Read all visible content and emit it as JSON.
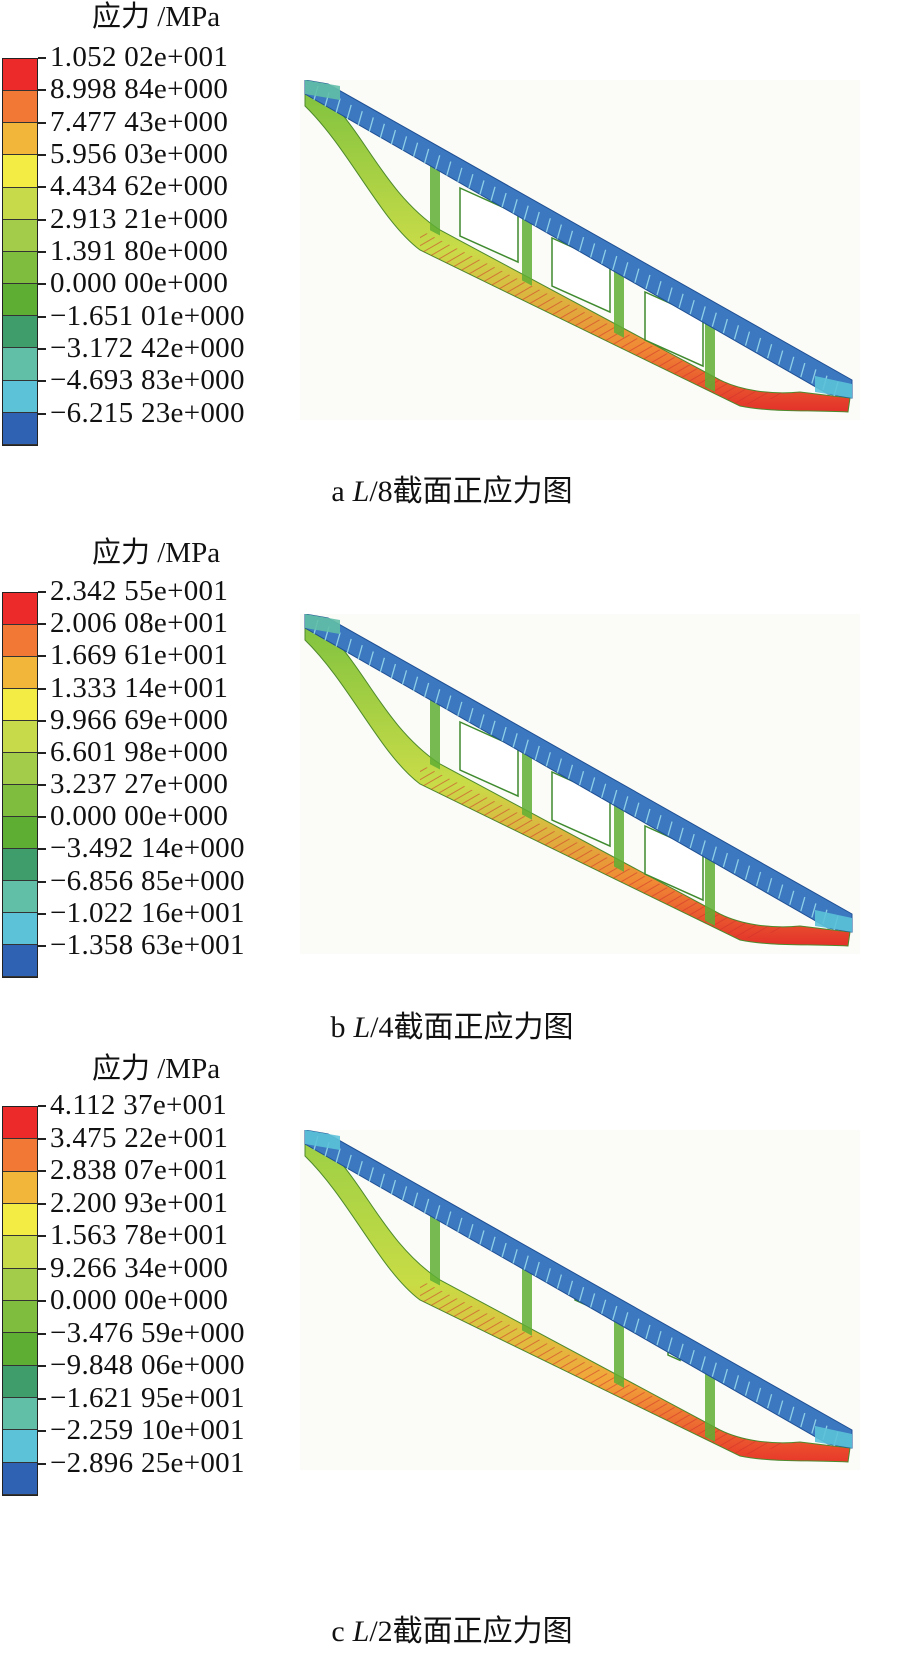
{
  "colors": [
    "#ec2a2a",
    "#f17935",
    "#f2b73a",
    "#f3ec45",
    "#c6da4a",
    "#a4cc4b",
    "#7ebd3d",
    "#5fae34",
    "#3f9c6b",
    "#62bfa7",
    "#5cc2d8",
    "#2f62b3"
  ],
  "panels": [
    {
      "legend_title": "应力 /MPa",
      "ticks": [
        "1.052 02e+001",
        "8.998 84e+000",
        "7.477 43e+000",
        "5.956 03e+000",
        "4.434 62e+000",
        "2.913 21e+000",
        "1.391 80e+000",
        "0.000 00e+000",
        "−1.651 01e+000",
        "−3.172 42e+000",
        "−4.693 83e+000",
        "−6.215 23e+000"
      ],
      "caption_letter": "a",
      "caption_section": "L",
      "caption_rest": "/8截面正应力图"
    },
    {
      "legend_title": "应力 /MPa",
      "ticks": [
        "2.342 55e+001",
        "2.006 08e+001",
        "1.669 61e+001",
        "1.333 14e+001",
        "9.966 69e+000",
        "6.601 98e+000",
        "3.237 27e+000",
        "0.000 00e+000",
        "−3.492 14e+000",
        "−6.856 85e+000",
        "−1.022 16e+001",
        "−1.358 63e+001"
      ],
      "caption_letter": "b",
      "caption_section": "L",
      "caption_rest": "/4截面正应力图"
    },
    {
      "legend_title": "应力 /MPa",
      "ticks": [
        "4.112 37e+001",
        "3.475 22e+001",
        "2.838 07e+001",
        "2.200 93e+001",
        "1.563 78e+001",
        "9.266 34e+000",
        "0.000 00e+000",
        "−3.476 59e+000",
        "−9.848 06e+000",
        "−1.621 95e+001",
        "−2.259 10e+001",
        "−2.896 25e+001"
      ],
      "caption_letter": "c",
      "caption_section": "L",
      "caption_rest": "/2截面正应力图"
    }
  ]
}
